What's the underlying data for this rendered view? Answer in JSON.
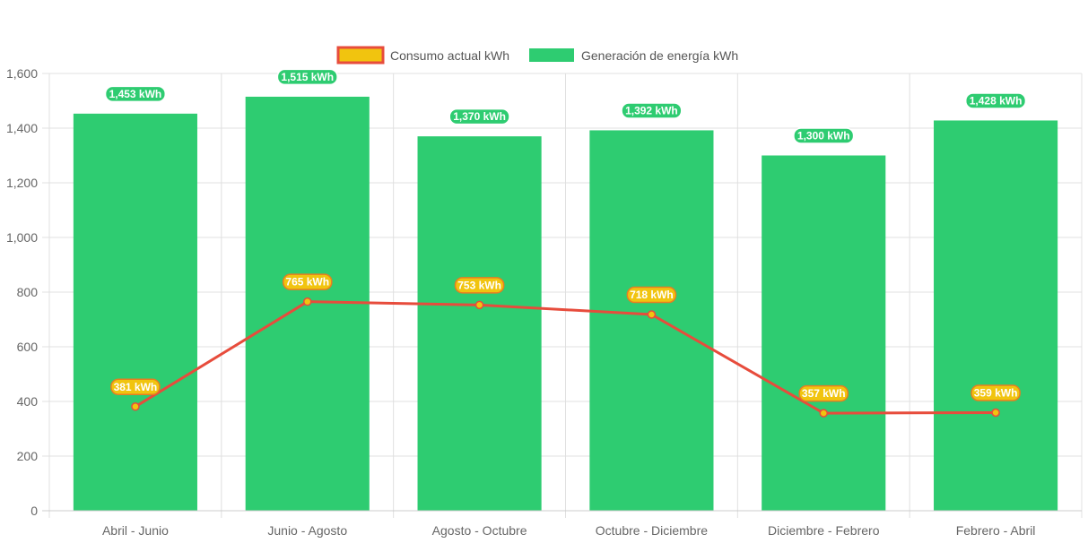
{
  "chart_data": {
    "type": "bar",
    "categories": [
      "Abril - Junio",
      "Junio - Agosto",
      "Agosto - Octubre",
      "Octubre - Diciembre",
      "Diciembre - Febrero",
      "Febrero - Abril"
    ],
    "ylim": [
      0,
      1600
    ],
    "yticks": [
      0,
      200,
      400,
      600,
      800,
      1000,
      1200,
      1400,
      1600
    ],
    "ytick_labels": [
      "0",
      "200",
      "400",
      "600",
      "800",
      "1,000",
      "1,200",
      "1,400",
      "1,600"
    ],
    "grid": true,
    "legend_position": "top-center",
    "series": [
      {
        "name": "Consumo actual kWh",
        "type": "line",
        "values": [
          381,
          765,
          753,
          718,
          357,
          359
        ],
        "labels": [
          "381 kWh",
          "765 kWh",
          "753 kWh",
          "718 kWh",
          "357 kWh",
          "359 kWh"
        ],
        "line_color": "#e74c3c",
        "fill_color": "#f1c40f"
      },
      {
        "name": "Generación de energía kWh",
        "type": "bar",
        "values": [
          1453,
          1515,
          1370,
          1392,
          1300,
          1428
        ],
        "labels": [
          "1,453 kWh",
          "1,515 kWh",
          "1,370 kWh",
          "1,392 kWh",
          "1,300 kWh",
          "1,428 kWh"
        ],
        "fill_color": "#2ecc71"
      }
    ]
  }
}
